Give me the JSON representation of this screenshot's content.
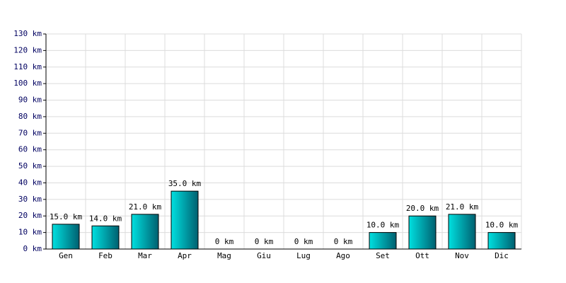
{
  "chart_data": {
    "type": "bar",
    "categories": [
      "Gen",
      "Feb",
      "Mar",
      "Apr",
      "Mag",
      "Giu",
      "Lug",
      "Ago",
      "Set",
      "Ott",
      "Nov",
      "Dic"
    ],
    "values": [
      15,
      14,
      21,
      35,
      0,
      0,
      0,
      0,
      10,
      20,
      21,
      10
    ],
    "value_labels": [
      "15.0 km",
      "14.0 km",
      "21.0 km",
      "35.0 km",
      "0 km",
      "0 km",
      "0 km",
      "0 km",
      "10.0 km",
      "20.0 km",
      "21.0 km",
      "10.0 km"
    ],
    "color": "#00e0e0",
    "ylim": [
      0,
      130
    ],
    "yticks": [
      {
        "value": 0,
        "label": "0 km"
      },
      {
        "value": 10,
        "label": "10 km"
      },
      {
        "value": 20,
        "label": "20 km"
      },
      {
        "value": 30,
        "label": "30 km"
      },
      {
        "value": 40,
        "label": "40 km"
      },
      {
        "value": 50,
        "label": "50 km"
      },
      {
        "value": 60,
        "label": "60 km"
      },
      {
        "value": 70,
        "label": "70 km"
      },
      {
        "value": 80,
        "label": "80 km"
      },
      {
        "value": 90,
        "label": "90 km"
      },
      {
        "value": 100,
        "label": "100 km"
      },
      {
        "value": 110,
        "label": "110 km"
      },
      {
        "value": 120,
        "label": "120 km"
      },
      {
        "value": 130,
        "label": "130 km"
      }
    ],
    "grid": true
  }
}
